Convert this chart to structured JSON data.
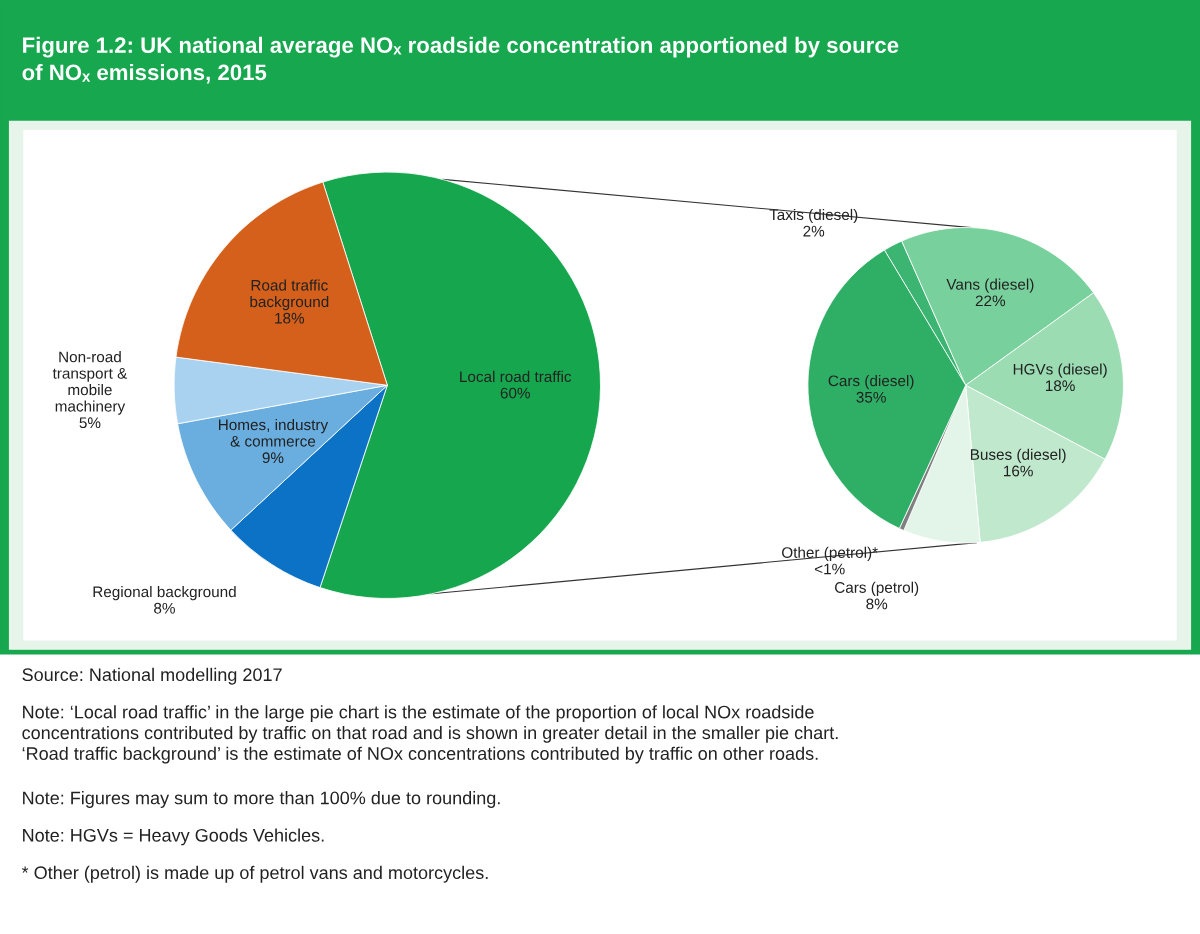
{
  "chart_data": [
    {
      "type": "pie",
      "title": "Figure 1.2: UK national average NOₓ roadside concentration apportioned by source\nof NOₓ emissions, 2015",
      "categories": [
        "Local road traffic",
        "Regional background",
        "Homes, industry\n& commerce",
        "Non-road\ntransport &\nmobile\nmachinery",
        "Road traffic\nbackground"
      ],
      "values": [
        60,
        8,
        9,
        5,
        18
      ],
      "colors": [
        "#16a74e",
        "#0b72c6",
        "#6aaee0",
        "#a8d2f0",
        "#d4601c"
      ],
      "value_labels": [
        "60%",
        "8%",
        "9%",
        "5%",
        "18%"
      ],
      "annotations": [
        "Source: National modelling 2017",
        "Note: ‘Local road traffic’ in the large pie chart is the estimate of the proportion of local NOx roadside\nconcentrations contributed by traffic on that road and is shown in greater detail in the smaller pie chart.\n‘Road traffic background’ is the estimate of NOx concentrations contributed by traffic on other roads.",
        "Note: Figures may sum to more than 100% due to rounding.",
        "Note: HGVs = Heavy Goods Vehicles.",
        "* Other (petrol) is made up of petrol vans and motorcycles."
      ]
    },
    {
      "type": "pie",
      "categories": [
        "Taxis (diesel)",
        "Vans (diesel)",
        "HGVs (diesel)",
        "Buses (diesel)",
        "Cars (petrol)",
        "Other (petrol)*",
        "Cars (diesel)"
      ],
      "values": [
        2,
        22,
        18,
        16,
        8,
        0.5,
        35
      ],
      "value_labels": [
        "2%",
        "22%",
        "18%",
        "16%",
        "8%",
        "<1%",
        "35%"
      ],
      "colors": [
        "#3cb572",
        "#78d09c",
        "#9bdcb3",
        "#bfe8cd",
        "#e3f5e8",
        "#7f7f7f",
        "#2faf66"
      ]
    }
  ]
}
